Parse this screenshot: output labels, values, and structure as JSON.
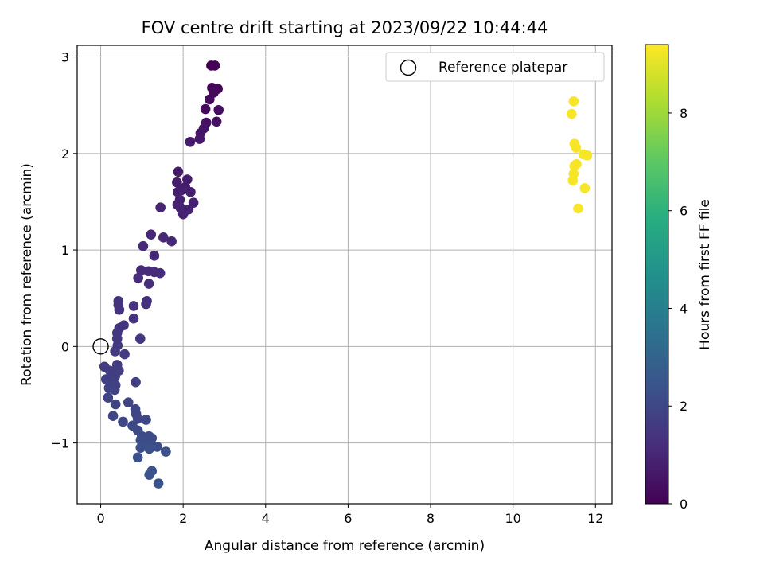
{
  "chart_data": {
    "type": "scatter",
    "title": "FOV centre drift starting at 2023/09/22 10:44:44",
    "xlabel": "Angular distance from reference (arcmin)",
    "ylabel": "Rotation from reference (arcmin)",
    "xlim": [
      -0.57,
      12.4
    ],
    "ylim": [
      -1.63,
      3.12
    ],
    "xticks": [
      0,
      2,
      4,
      6,
      8,
      10,
      12
    ],
    "yticks": [
      -1,
      0,
      1,
      2,
      3
    ],
    "grid": true,
    "legend": {
      "location": "upper right",
      "entries": [
        "Reference platepar"
      ]
    },
    "reference_point": {
      "x": 0,
      "y": 0,
      "label": "Reference platepar"
    },
    "colorbar": {
      "label": "Hours from first FF file",
      "colormap": "viridis",
      "range": [
        0,
        9.4
      ],
      "ticks": [
        0,
        2,
        4,
        6,
        8
      ]
    },
    "points": [
      {
        "x": 2.68,
        "y": 2.91,
        "t": 0.0
      },
      {
        "x": 2.77,
        "y": 2.91,
        "t": 0.05
      },
      {
        "x": 2.7,
        "y": 2.68,
        "t": 0.1
      },
      {
        "x": 2.84,
        "y": 2.67,
        "t": 0.15
      },
      {
        "x": 2.74,
        "y": 2.63,
        "t": 0.2
      },
      {
        "x": 2.64,
        "y": 2.56,
        "t": 0.25
      },
      {
        "x": 2.54,
        "y": 2.46,
        "t": 0.3
      },
      {
        "x": 2.86,
        "y": 2.45,
        "t": 0.35
      },
      {
        "x": 2.56,
        "y": 2.32,
        "t": 0.4
      },
      {
        "x": 2.81,
        "y": 2.33,
        "t": 0.45
      },
      {
        "x": 2.5,
        "y": 2.26,
        "t": 0.5
      },
      {
        "x": 2.42,
        "y": 2.21,
        "t": 0.55
      },
      {
        "x": 2.4,
        "y": 2.15,
        "t": 0.6
      },
      {
        "x": 2.17,
        "y": 2.12,
        "t": 0.65
      },
      {
        "x": 1.88,
        "y": 1.81,
        "t": 0.7
      },
      {
        "x": 2.1,
        "y": 1.73,
        "t": 0.72
      },
      {
        "x": 1.85,
        "y": 1.7,
        "t": 0.74
      },
      {
        "x": 2.05,
        "y": 1.65,
        "t": 0.76
      },
      {
        "x": 1.96,
        "y": 1.62,
        "t": 0.78
      },
      {
        "x": 1.87,
        "y": 1.6,
        "t": 0.8
      },
      {
        "x": 2.18,
        "y": 1.6,
        "t": 0.82
      },
      {
        "x": 1.92,
        "y": 1.52,
        "t": 0.84
      },
      {
        "x": 2.25,
        "y": 1.49,
        "t": 0.86
      },
      {
        "x": 1.86,
        "y": 1.47,
        "t": 0.88
      },
      {
        "x": 1.93,
        "y": 1.44,
        "t": 0.9
      },
      {
        "x": 2.13,
        "y": 1.42,
        "t": 0.92
      },
      {
        "x": 2.0,
        "y": 1.37,
        "t": 0.94
      },
      {
        "x": 1.45,
        "y": 1.44,
        "t": 0.96
      },
      {
        "x": 1.22,
        "y": 1.16,
        "t": 1.0
      },
      {
        "x": 1.52,
        "y": 1.13,
        "t": 1.02
      },
      {
        "x": 1.72,
        "y": 1.09,
        "t": 1.04
      },
      {
        "x": 1.03,
        "y": 1.04,
        "t": 1.06
      },
      {
        "x": 1.3,
        "y": 0.94,
        "t": 1.08
      },
      {
        "x": 0.98,
        "y": 0.79,
        "t": 1.1
      },
      {
        "x": 1.16,
        "y": 0.78,
        "t": 1.12
      },
      {
        "x": 1.3,
        "y": 0.77,
        "t": 1.14
      },
      {
        "x": 1.44,
        "y": 0.76,
        "t": 1.16
      },
      {
        "x": 0.91,
        "y": 0.71,
        "t": 1.18
      },
      {
        "x": 1.17,
        "y": 0.65,
        "t": 1.2
      },
      {
        "x": 1.12,
        "y": 0.47,
        "t": 1.25
      },
      {
        "x": 1.1,
        "y": 0.44,
        "t": 1.3
      },
      {
        "x": 0.8,
        "y": 0.42,
        "t": 1.32
      },
      {
        "x": 0.43,
        "y": 0.47,
        "t": 1.34
      },
      {
        "x": 0.43,
        "y": 0.43,
        "t": 1.36
      },
      {
        "x": 0.45,
        "y": 0.38,
        "t": 1.38
      },
      {
        "x": 0.8,
        "y": 0.29,
        "t": 1.4
      },
      {
        "x": 0.56,
        "y": 0.22,
        "t": 1.42
      },
      {
        "x": 0.45,
        "y": 0.19,
        "t": 1.44
      },
      {
        "x": 0.4,
        "y": 0.14,
        "t": 1.46
      },
      {
        "x": 0.4,
        "y": 0.08,
        "t": 1.48
      },
      {
        "x": 0.96,
        "y": 0.08,
        "t": 1.5
      },
      {
        "x": 0.41,
        "y": 0.01,
        "t": 1.52
      },
      {
        "x": 0.35,
        "y": -0.05,
        "t": 1.56
      },
      {
        "x": 0.58,
        "y": -0.08,
        "t": 1.6
      },
      {
        "x": 0.09,
        "y": -0.21,
        "t": 1.64
      },
      {
        "x": 0.4,
        "y": -0.19,
        "t": 1.66
      },
      {
        "x": 0.22,
        "y": -0.25,
        "t": 1.68
      },
      {
        "x": 0.44,
        "y": -0.25,
        "t": 1.7
      },
      {
        "x": 0.35,
        "y": -0.31,
        "t": 1.72
      },
      {
        "x": 0.13,
        "y": -0.34,
        "t": 1.74
      },
      {
        "x": 0.28,
        "y": -0.35,
        "t": 1.76
      },
      {
        "x": 0.85,
        "y": -0.37,
        "t": 1.78
      },
      {
        "x": 0.36,
        "y": -0.4,
        "t": 1.8
      },
      {
        "x": 0.2,
        "y": -0.43,
        "t": 1.82
      },
      {
        "x": 0.34,
        "y": -0.45,
        "t": 1.84
      },
      {
        "x": 0.18,
        "y": -0.53,
        "t": 1.86
      },
      {
        "x": 0.67,
        "y": -0.58,
        "t": 1.9
      },
      {
        "x": 0.36,
        "y": -0.6,
        "t": 1.92
      },
      {
        "x": 0.84,
        "y": -0.65,
        "t": 1.94
      },
      {
        "x": 0.86,
        "y": -0.7,
        "t": 1.96
      },
      {
        "x": 0.3,
        "y": -0.72,
        "t": 1.98
      },
      {
        "x": 0.9,
        "y": -0.75,
        "t": 2.0
      },
      {
        "x": 1.1,
        "y": -0.76,
        "t": 2.02
      },
      {
        "x": 0.54,
        "y": -0.78,
        "t": 2.04
      },
      {
        "x": 0.77,
        "y": -0.82,
        "t": 2.06
      },
      {
        "x": 0.9,
        "y": -0.87,
        "t": 2.08
      },
      {
        "x": 1.0,
        "y": -0.93,
        "t": 2.1
      },
      {
        "x": 1.17,
        "y": -0.93,
        "t": 2.12
      },
      {
        "x": 1.24,
        "y": -0.95,
        "t": 2.14
      },
      {
        "x": 0.97,
        "y": -0.97,
        "t": 2.16
      },
      {
        "x": 1.1,
        "y": -1.0,
        "t": 2.18
      },
      {
        "x": 1.02,
        "y": -1.02,
        "t": 2.2
      },
      {
        "x": 1.24,
        "y": -1.03,
        "t": 2.22
      },
      {
        "x": 1.37,
        "y": -1.04,
        "t": 2.24
      },
      {
        "x": 0.97,
        "y": -1.05,
        "t": 2.26
      },
      {
        "x": 1.18,
        "y": -1.06,
        "t": 2.28
      },
      {
        "x": 1.58,
        "y": -1.09,
        "t": 2.3
      },
      {
        "x": 0.9,
        "y": -1.15,
        "t": 2.32
      },
      {
        "x": 1.24,
        "y": -1.29,
        "t": 2.34
      },
      {
        "x": 1.18,
        "y": -1.33,
        "t": 2.36
      },
      {
        "x": 1.4,
        "y": -1.42,
        "t": 2.4
      },
      {
        "x": 11.47,
        "y": 2.54,
        "t": 9.3
      },
      {
        "x": 11.42,
        "y": 2.41,
        "t": 9.3
      },
      {
        "x": 11.49,
        "y": 2.1,
        "t": 9.3
      },
      {
        "x": 11.53,
        "y": 2.06,
        "t": 9.3
      },
      {
        "x": 11.71,
        "y": 1.99,
        "t": 9.3
      },
      {
        "x": 11.8,
        "y": 1.98,
        "t": 9.3
      },
      {
        "x": 11.54,
        "y": 1.89,
        "t": 9.3
      },
      {
        "x": 11.49,
        "y": 1.87,
        "t": 9.3
      },
      {
        "x": 11.47,
        "y": 1.79,
        "t": 9.3
      },
      {
        "x": 11.45,
        "y": 1.72,
        "t": 9.3
      },
      {
        "x": 11.74,
        "y": 1.64,
        "t": 9.3
      },
      {
        "x": 11.58,
        "y": 1.43,
        "t": 9.3
      }
    ]
  }
}
